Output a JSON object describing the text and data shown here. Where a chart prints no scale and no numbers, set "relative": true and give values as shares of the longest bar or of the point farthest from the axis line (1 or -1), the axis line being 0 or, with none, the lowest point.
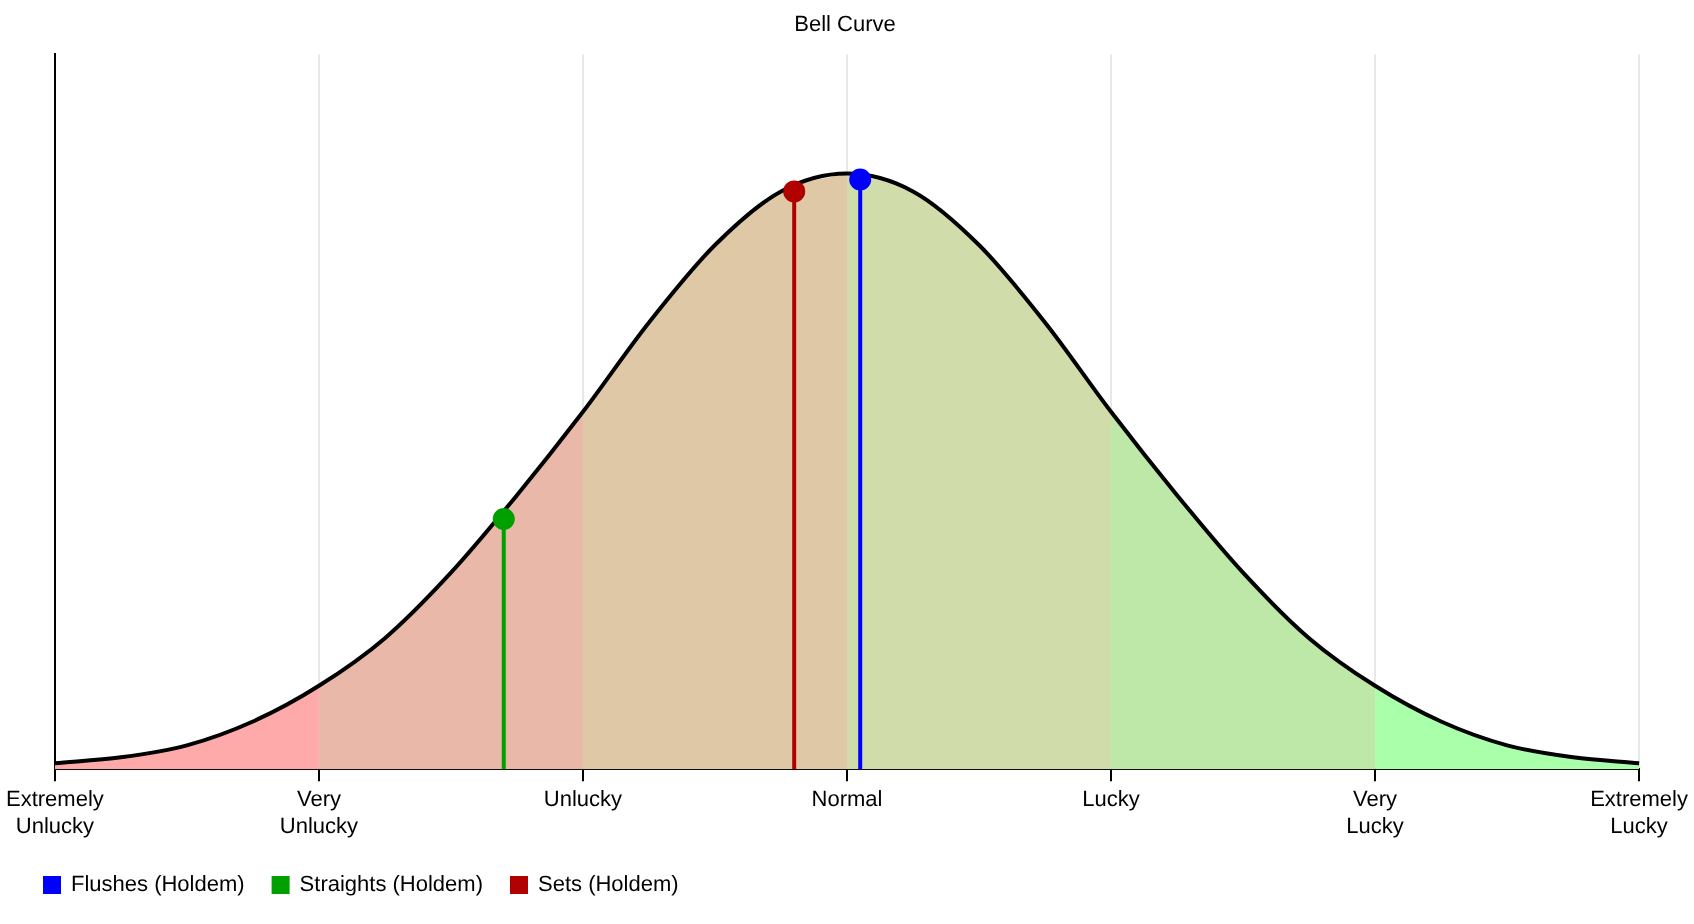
{
  "chart_data": {
    "type": "area",
    "title": "Bell Curve",
    "relative": true,
    "categories": [
      "Extremely Unlucky",
      null,
      null,
      null,
      null,
      null,
      null,
      null,
      null,
      null,
      null,
      null,
      null,
      null,
      null,
      null,
      null,
      null,
      null,
      null,
      "Very Unlucky",
      null,
      null,
      null,
      null,
      null,
      null,
      null,
      null,
      null,
      null,
      null,
      null,
      null,
      null,
      null,
      null,
      null,
      null,
      null,
      "Unlucky",
      null,
      null,
      null,
      null,
      null,
      null,
      null,
      null,
      null,
      null,
      null,
      null,
      null,
      null,
      null,
      null,
      null,
      null,
      null,
      "Normal",
      null,
      null,
      null,
      null,
      null,
      null,
      null,
      null,
      null,
      null,
      null,
      null,
      null,
      null,
      null,
      null,
      null,
      null,
      null,
      "Lucky",
      null,
      null,
      null,
      null,
      null,
      null,
      null,
      null,
      null,
      null,
      null,
      null,
      null,
      null,
      null,
      null,
      null,
      null,
      null,
      "Very Lucky",
      null,
      null,
      null,
      null,
      null,
      null,
      null,
      null,
      null,
      null,
      null,
      null,
      null,
      null,
      null,
      null,
      null,
      null,
      null,
      "Extremely Lucky"
    ],
    "series": [
      {
        "color": "#ffaaaa",
        "values": [
          0.01,
          null,
          null,
          null,
          null,
          0.02,
          null,
          null,
          null,
          null,
          0.04,
          null,
          null,
          null,
          null,
          0.08,
          null,
          null,
          null,
          null,
          0.14,
          null,
          null,
          null,
          null,
          null,
          null,
          null,
          null,
          null,
          null,
          null,
          null,
          null,
          null,
          null,
          null,
          null,
          null,
          null,
          null,
          null,
          null,
          null,
          null,
          null,
          null,
          null,
          null,
          null,
          null,
          null,
          null,
          null,
          null,
          null,
          null,
          null,
          null,
          null,
          null,
          null,
          null,
          null,
          null,
          null,
          null,
          null,
          null,
          null,
          null,
          null,
          null,
          null,
          null,
          null,
          null,
          null,
          null,
          null,
          null,
          null,
          null,
          null,
          null,
          null,
          null,
          null,
          null,
          null,
          null,
          null,
          null,
          null,
          null,
          null,
          null,
          null,
          null,
          null,
          null,
          null,
          null,
          null,
          null,
          null,
          null,
          null,
          null,
          null,
          null,
          null,
          null,
          null,
          null,
          null,
          null,
          null,
          null,
          null,
          null
        ]
      },
      {
        "color": "#eab8a8",
        "values": [
          null,
          null,
          null,
          null,
          null,
          null,
          null,
          null,
          null,
          null,
          null,
          null,
          null,
          null,
          null,
          null,
          null,
          null,
          null,
          null,
          0.14,
          null,
          null,
          null,
          null,
          0.22,
          null,
          null,
          null,
          null,
          0.33,
          null,
          null,
          null,
          null,
          0.46,
          null,
          null,
          null,
          null,
          0.6,
          null,
          null,
          null,
          null,
          null,
          null,
          null,
          null,
          null,
          null,
          null,
          null,
          null,
          null,
          null,
          null,
          null,
          null,
          null,
          null,
          null,
          null,
          null,
          null,
          null,
          null,
          null,
          null,
          null,
          null,
          null,
          null,
          null,
          null,
          null,
          null,
          null,
          null,
          null,
          null,
          null,
          null,
          null,
          null,
          null,
          null,
          null,
          null,
          null,
          null,
          null,
          null,
          null,
          null,
          null,
          null,
          null,
          null,
          null,
          null,
          null,
          null,
          null,
          null,
          null,
          null,
          null,
          null,
          null,
          null,
          null,
          null,
          null,
          null,
          null,
          null,
          null,
          null,
          null,
          null
        ]
      },
      {
        "color": "#dfc8a6",
        "values": [
          null,
          null,
          null,
          null,
          null,
          null,
          null,
          null,
          null,
          null,
          null,
          null,
          null,
          null,
          null,
          null,
          null,
          null,
          null,
          null,
          null,
          null,
          null,
          null,
          null,
          null,
          null,
          null,
          null,
          null,
          null,
          null,
          null,
          null,
          null,
          null,
          null,
          null,
          null,
          null,
          0.6,
          null,
          null,
          null,
          null,
          0.75,
          null,
          null,
          null,
          null,
          0.88,
          null,
          null,
          null,
          null,
          0.97,
          null,
          null,
          null,
          null,
          1,
          null,
          null,
          null,
          null,
          null,
          null,
          null,
          null,
          null,
          null,
          null,
          null,
          null,
          null,
          null,
          null,
          null,
          null,
          null,
          null,
          null,
          null,
          null,
          null,
          null,
          null,
          null,
          null,
          null,
          null,
          null,
          null,
          null,
          null,
          null,
          null,
          null,
          null,
          null,
          null,
          null,
          null,
          null,
          null,
          null,
          null,
          null,
          null,
          null,
          null,
          null,
          null,
          null,
          null,
          null,
          null,
          null,
          null,
          null,
          null
        ]
      },
      {
        "color": "#d0dcaa",
        "values": [
          null,
          null,
          null,
          null,
          null,
          null,
          null,
          null,
          null,
          null,
          null,
          null,
          null,
          null,
          null,
          null,
          null,
          null,
          null,
          null,
          null,
          null,
          null,
          null,
          null,
          null,
          null,
          null,
          null,
          null,
          null,
          null,
          null,
          null,
          null,
          null,
          null,
          null,
          null,
          null,
          null,
          null,
          null,
          null,
          null,
          null,
          null,
          null,
          null,
          null,
          null,
          null,
          null,
          null,
          null,
          null,
          null,
          null,
          null,
          null,
          1,
          null,
          null,
          null,
          null,
          0.97,
          null,
          null,
          null,
          null,
          0.88,
          null,
          null,
          null,
          null,
          0.75,
          null,
          null,
          null,
          null,
          0.6,
          null,
          null,
          null,
          null,
          null,
          null,
          null,
          null,
          null,
          null,
          null,
          null,
          null,
          null,
          null,
          null,
          null,
          null,
          null,
          null,
          null,
          null,
          null,
          null,
          null,
          null,
          null,
          null,
          null,
          null,
          null,
          null,
          null,
          null,
          null,
          null,
          null,
          null,
          null,
          null
        ]
      },
      {
        "color": "#bee8a8",
        "values": [
          null,
          null,
          null,
          null,
          null,
          null,
          null,
          null,
          null,
          null,
          null,
          null,
          null,
          null,
          null,
          null,
          null,
          null,
          null,
          null,
          null,
          null,
          null,
          null,
          null,
          null,
          null,
          null,
          null,
          null,
          null,
          null,
          null,
          null,
          null,
          null,
          null,
          null,
          null,
          null,
          null,
          null,
          null,
          null,
          null,
          null,
          null,
          null,
          null,
          null,
          null,
          null,
          null,
          null,
          null,
          null,
          null,
          null,
          null,
          null,
          null,
          null,
          null,
          null,
          null,
          null,
          null,
          null,
          null,
          null,
          null,
          null,
          null,
          null,
          null,
          null,
          null,
          null,
          null,
          null,
          0.6,
          null,
          null,
          null,
          null,
          0.46,
          null,
          null,
          null,
          null,
          0.33,
          null,
          null,
          null,
          null,
          0.22,
          null,
          null,
          null,
          null,
          0.14,
          null,
          null,
          null,
          null,
          null,
          null,
          null,
          null,
          null,
          null,
          null,
          null,
          null,
          null,
          null,
          null,
          null,
          null,
          null,
          null
        ]
      },
      {
        "color": "#aaffaa",
        "values": [
          null,
          null,
          null,
          null,
          null,
          null,
          null,
          null,
          null,
          null,
          null,
          null,
          null,
          null,
          null,
          null,
          null,
          null,
          null,
          null,
          null,
          null,
          null,
          null,
          null,
          null,
          null,
          null,
          null,
          null,
          null,
          null,
          null,
          null,
          null,
          null,
          null,
          null,
          null,
          null,
          null,
          null,
          null,
          null,
          null,
          null,
          null,
          null,
          null,
          null,
          null,
          null,
          null,
          null,
          null,
          null,
          null,
          null,
          null,
          null,
          null,
          null,
          null,
          null,
          null,
          null,
          null,
          null,
          null,
          null,
          null,
          null,
          null,
          null,
          null,
          null,
          null,
          null,
          null,
          null,
          null,
          null,
          null,
          null,
          null,
          null,
          null,
          null,
          null,
          null,
          null,
          null,
          null,
          null,
          null,
          null,
          null,
          null,
          null,
          null,
          0.14,
          null,
          null,
          null,
          null,
          0.08,
          null,
          null,
          null,
          null,
          0.04,
          null,
          null,
          null,
          null,
          0.02,
          null,
          null,
          null,
          null,
          0.01
        ]
      },
      {
        "type": "line",
        "color": "#000000",
        "values": [
          0.01,
          null,
          null,
          null,
          null,
          0.02,
          null,
          null,
          null,
          null,
          0.04,
          null,
          null,
          null,
          null,
          0.08,
          null,
          null,
          null,
          null,
          0.14,
          null,
          null,
          null,
          null,
          0.22,
          null,
          null,
          null,
          null,
          0.33,
          null,
          null,
          null,
          null,
          0.46,
          null,
          null,
          null,
          null,
          0.6,
          null,
          null,
          null,
          null,
          0.75,
          null,
          null,
          null,
          null,
          0.88,
          null,
          null,
          null,
          null,
          0.97,
          null,
          null,
          null,
          null,
          1,
          null,
          null,
          null,
          null,
          0.97,
          null,
          null,
          null,
          null,
          0.88,
          null,
          null,
          null,
          null,
          0.75,
          null,
          null,
          null,
          null,
          0.6,
          null,
          null,
          null,
          null,
          0.46,
          null,
          null,
          null,
          null,
          0.33,
          null,
          null,
          null,
          null,
          0.22,
          null,
          null,
          null,
          null,
          0.14,
          null,
          null,
          null,
          null,
          0.08,
          null,
          null,
          null,
          null,
          0.04,
          null,
          null,
          null,
          null,
          0.02,
          null,
          null,
          null,
          null,
          0.01
        ]
      },
      {
        "type": "lollipop",
        "name": "Flushes (Holdem)",
        "color": "#0000ff",
        "marker": "circle",
        "values": [
          null,
          null,
          null,
          null,
          null,
          null,
          null,
          null,
          null,
          null,
          null,
          null,
          null,
          null,
          null,
          null,
          null,
          null,
          null,
          null,
          null,
          null,
          null,
          null,
          null,
          null,
          null,
          null,
          null,
          null,
          null,
          null,
          null,
          null,
          null,
          null,
          null,
          null,
          null,
          null,
          null,
          null,
          null,
          null,
          null,
          null,
          null,
          null,
          null,
          null,
          null,
          null,
          null,
          null,
          null,
          null,
          null,
          null,
          null,
          null,
          null,
          0.99,
          null,
          null,
          null,
          null,
          null,
          null,
          null,
          null,
          null,
          null,
          null,
          null,
          null,
          null,
          null,
          null,
          null,
          null,
          null,
          null,
          null,
          null,
          null,
          null,
          null,
          null,
          null,
          null,
          null,
          null,
          null,
          null,
          null,
          null,
          null,
          null,
          null,
          null,
          null,
          null,
          null,
          null,
          null,
          null,
          null,
          null,
          null,
          null,
          null,
          null,
          null,
          null,
          null,
          null,
          null,
          null,
          null,
          null,
          null
        ]
      },
      {
        "type": "lollipop",
        "name": "Straights (Holdem)",
        "color": "#00a000",
        "marker": "circle",
        "values": [
          null,
          null,
          null,
          null,
          null,
          null,
          null,
          null,
          null,
          null,
          null,
          null,
          null,
          null,
          null,
          null,
          null,
          null,
          null,
          null,
          null,
          null,
          null,
          null,
          null,
          null,
          null,
          null,
          null,
          null,
          null,
          null,
          null,
          null,
          0.42,
          null,
          null,
          null,
          null,
          null,
          null,
          null,
          null,
          null,
          null,
          null,
          null,
          null,
          null,
          null,
          null,
          null,
          null,
          null,
          null,
          null,
          null,
          null,
          null,
          null,
          null,
          null,
          null,
          null,
          null,
          null,
          null,
          null,
          null,
          null,
          null,
          null,
          null,
          null,
          null,
          null,
          null,
          null,
          null,
          null,
          null,
          null,
          null,
          null,
          null,
          null,
          null,
          null,
          null,
          null,
          null,
          null,
          null,
          null,
          null,
          null,
          null,
          null,
          null,
          null,
          null,
          null,
          null,
          null,
          null,
          null,
          null,
          null,
          null,
          null,
          null,
          null,
          null,
          null,
          null,
          null,
          null,
          null,
          null,
          null,
          null
        ]
      },
      {
        "type": "lollipop",
        "name": "Sets (Holdem)",
        "color": "#b00000",
        "marker": "circle",
        "values": [
          null,
          null,
          null,
          null,
          null,
          null,
          null,
          null,
          null,
          null,
          null,
          null,
          null,
          null,
          null,
          null,
          null,
          null,
          null,
          null,
          null,
          null,
          null,
          null,
          null,
          null,
          null,
          null,
          null,
          null,
          null,
          null,
          null,
          null,
          null,
          null,
          null,
          null,
          null,
          null,
          null,
          null,
          null,
          null,
          null,
          null,
          null,
          null,
          null,
          null,
          null,
          null,
          null,
          null,
          null,
          null,
          0.97,
          null,
          null,
          null,
          null,
          null,
          null,
          null,
          null,
          null,
          null,
          null,
          null,
          null,
          null,
          null,
          null,
          null,
          null,
          null,
          null,
          null,
          null,
          null,
          null,
          null,
          null,
          null,
          null,
          null,
          null,
          null,
          null,
          null,
          null,
          null,
          null,
          null,
          null,
          null,
          null,
          null,
          null,
          null,
          null,
          null,
          null,
          null,
          null,
          null,
          null,
          null,
          null,
          null,
          null,
          null,
          null,
          null,
          null,
          null,
          null,
          null,
          null,
          null,
          null
        ]
      }
    ],
    "grid": "x",
    "legend": "bottom left"
  }
}
